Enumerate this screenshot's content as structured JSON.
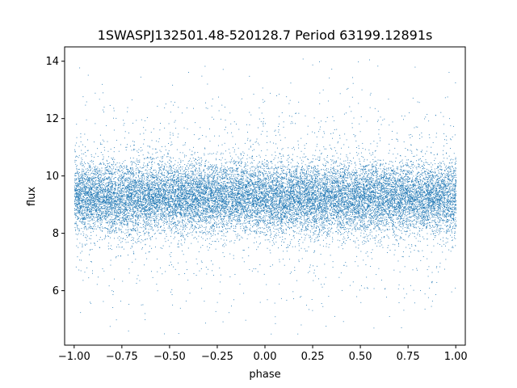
{
  "chart_data": {
    "type": "scatter",
    "title": "1SWASPJ132501.48-520128.7 Period 63199.12891s",
    "xlabel": "phase",
    "ylabel": "flux",
    "xlim": [
      -1.05,
      1.05
    ],
    "ylim": [
      4.1,
      14.5
    ],
    "x_ticks": [
      -1.0,
      -0.75,
      -0.5,
      -0.25,
      0.0,
      0.25,
      0.5,
      0.75,
      1.0
    ],
    "x_tick_labels": [
      "−1.00",
      "−0.75",
      "−0.50",
      "−0.25",
      "0.00",
      "0.25",
      "0.50",
      "0.75",
      "1.00"
    ],
    "y_ticks": [
      6,
      8,
      10,
      12,
      14
    ],
    "y_tick_labels": [
      "6",
      "8",
      "10",
      "12",
      "14"
    ],
    "grid": false,
    "marker_color": "#1f77b4",
    "series": [
      {
        "x_range": [
          -1.0,
          1.0
        ],
        "y_range": [
          4.5,
          14.1
        ],
        "y_center": 9.25,
        "y_spread_sd": 0.6,
        "x_density": "uniform",
        "approx_points": 20000
      }
    ]
  }
}
